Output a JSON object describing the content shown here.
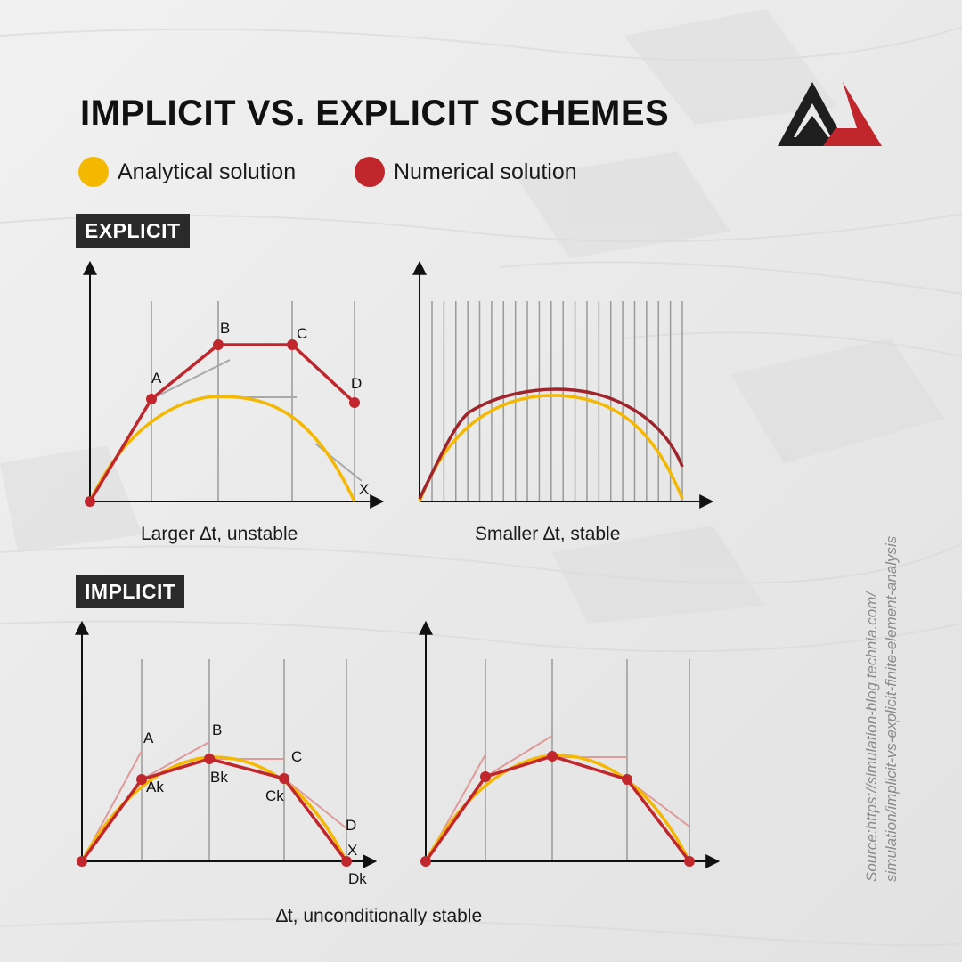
{
  "header": {
    "title": "IMPLICIT VS. EXPLICIT SCHEMES"
  },
  "legend": [
    {
      "label": "Analytical solution",
      "color": "#f5b800"
    },
    {
      "label": "Numerical solution",
      "color": "#c0262c"
    }
  ],
  "colors": {
    "analytical": "#f5b800",
    "numerical": "#c0262c",
    "grid": "#9a9a9a",
    "tangent": "#a8a8a8",
    "tangent_implicit": "#e09a9a",
    "badge": "#2a2a2a",
    "logo_dark": "#1e1e1e",
    "logo_red": "#c0262c"
  },
  "sections": {
    "explicit": {
      "badge": "EXPLICIT",
      "panels": [
        {
          "caption": "Larger ∆t, unstable",
          "point_labels": [
            "A",
            "B",
            "C",
            "D",
            "X"
          ]
        },
        {
          "caption": "Smaller ∆t, stable"
        }
      ]
    },
    "implicit": {
      "badge": "IMPLICIT",
      "caption": "∆t, unconditionally stable",
      "panels": [
        {
          "point_labels": [
            "A",
            "B",
            "C",
            "D",
            "X",
            "Ak",
            "Bk",
            "Ck",
            "Dk"
          ]
        },
        {}
      ]
    }
  },
  "source": {
    "line1": "Source:https://simulation-blog.technia.com/",
    "line2": "simulation/implicit-vs-explicit-finite-element-analysis"
  },
  "logo": {
    "icon": "ga-logo-icon"
  }
}
